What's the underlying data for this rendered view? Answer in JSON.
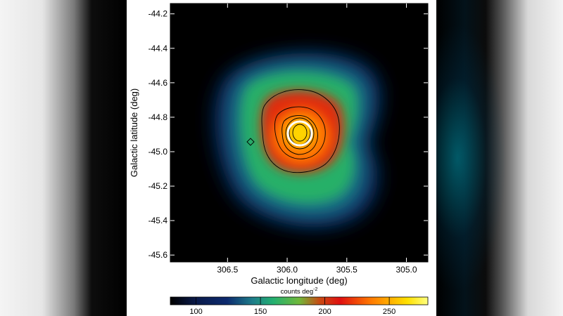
{
  "chart_data": {
    "type": "heatmap",
    "xlabel": "Galactic longitude (deg)",
    "ylabel": "Galactic latitude (deg)",
    "x_ticks": [
      306.5,
      306.0,
      305.5,
      305.0
    ],
    "x_tick_labels": [
      "306.5",
      "306.0",
      "305.5",
      "305.0"
    ],
    "y_ticks": [
      -44.2,
      -44.4,
      -44.6,
      -44.8,
      -45.0,
      -45.2,
      -45.4,
      -45.6
    ],
    "y_tick_labels": [
      "-44.2",
      "-44.4",
      "-44.6",
      "-44.8",
      "-45.0",
      "-45.2",
      "-45.4",
      "-45.6"
    ],
    "xlim": [
      306.98,
      304.82
    ],
    "ylim": [
      -45.64,
      -44.14
    ],
    "x_reversed": true,
    "colormap": [
      "#000000",
      "#0c2a6e",
      "#1e7d8a",
      "#23b070",
      "#6fb83a",
      "#c94a12",
      "#e01010",
      "#ff7a00",
      "#ffe000",
      "#ffff80"
    ],
    "colorbar": {
      "label": "counts deg",
      "label_exponent": "-2",
      "range": [
        80,
        280
      ],
      "ticks": [
        100,
        150,
        200,
        250
      ],
      "tick_labels": [
        "100",
        "150",
        "200",
        "250"
      ]
    },
    "peak": {
      "l": 305.9,
      "b": -44.89
    },
    "features": {
      "bright_circle": {
        "l": 305.9,
        "b": -44.89,
        "radius_deg": 0.05,
        "color": "#ffffff"
      },
      "contour_color": "#000000",
      "contour_levels": 7
    }
  }
}
